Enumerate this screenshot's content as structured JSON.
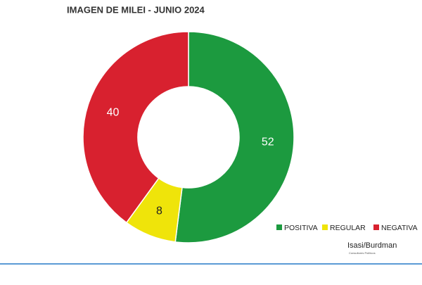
{
  "chart_data": {
    "type": "donut",
    "title": "IMAGEN DE MILEI - JUNIO 2024",
    "categories": [
      "POSITIVA",
      "REGULAR",
      "NEGATIVA"
    ],
    "values": [
      52,
      8,
      40
    ],
    "colors": [
      "#1c9a3f",
      "#efe40a",
      "#d8212f"
    ],
    "legend": "bottom-right",
    "source": "Isasi/Burdman",
    "source_subtitle": "Consultores Políticos"
  }
}
